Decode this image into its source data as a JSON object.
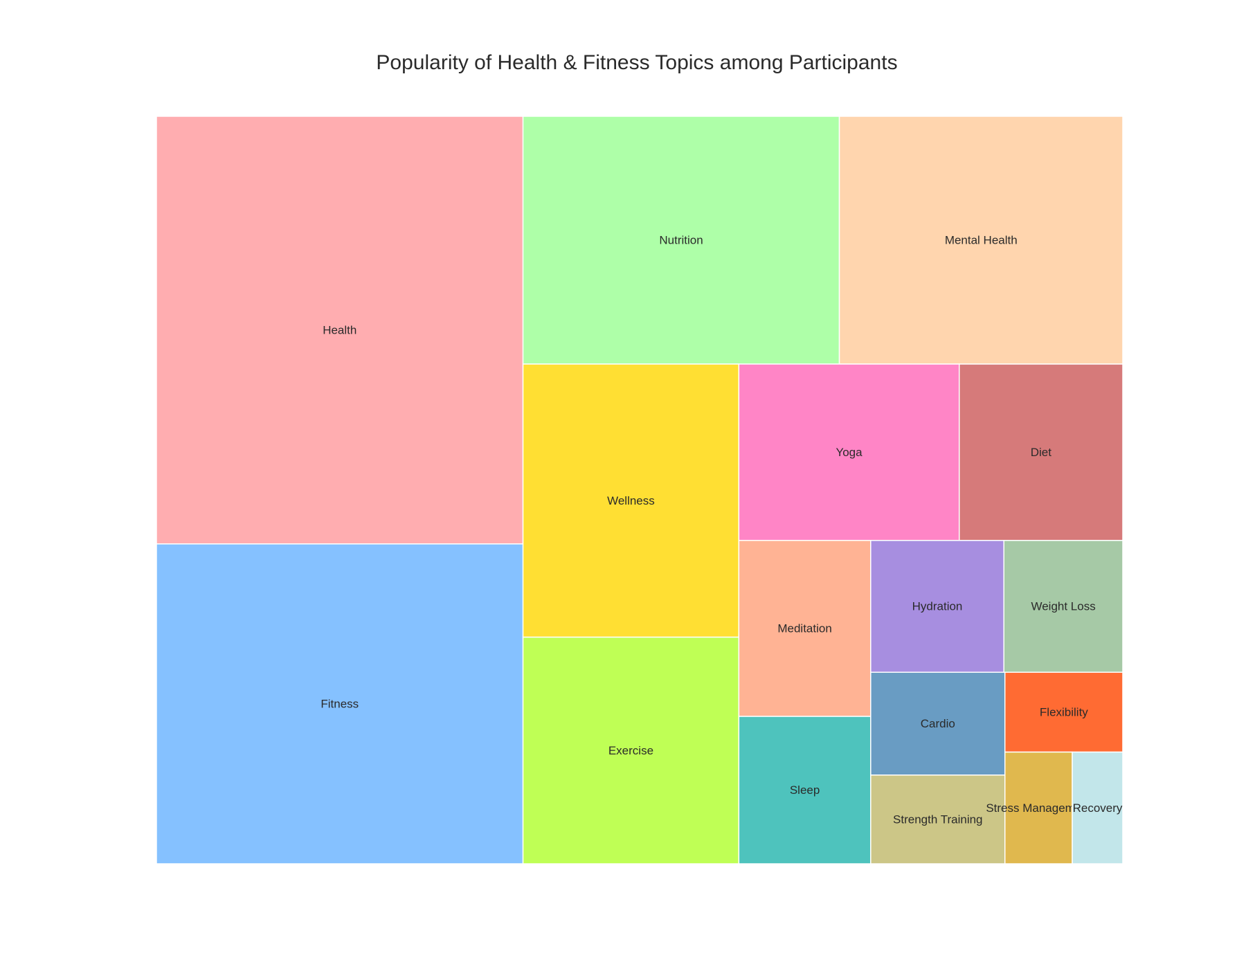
{
  "chart_data": {
    "type": "treemap",
    "title": "Popularity of Health & Fitness Topics among Participants",
    "items": [
      {
        "label": "Health",
        "value": 250,
        "color": "#FFADB0"
      },
      {
        "label": "Fitness",
        "value": 187,
        "color": "#85C1FF"
      },
      {
        "label": "Nutrition",
        "value": 125,
        "color": "#AEFFA8"
      },
      {
        "label": "Mental Health",
        "value": 112,
        "color": "#FFD5AE"
      },
      {
        "label": "Wellness",
        "value": 94,
        "color": "#FFDF33"
      },
      {
        "label": "Exercise",
        "value": 78,
        "color": "#BFFF55"
      },
      {
        "label": "Yoga",
        "value": 62,
        "color": "#FF85C6"
      },
      {
        "label": "Diet",
        "value": 46,
        "color": "#D67A7A"
      },
      {
        "label": "Meditation",
        "value": 37,
        "color": "#FFB394"
      },
      {
        "label": "Sleep",
        "value": 31,
        "color": "#4EC3BD"
      },
      {
        "label": "Hydration",
        "value": 28,
        "color": "#A78EE0"
      },
      {
        "label": "Weight Loss",
        "value": 25,
        "color": "#A6C9A6"
      },
      {
        "label": "Cardio",
        "value": 22,
        "color": "#699CC3"
      },
      {
        "label": "Strength Training",
        "value": 19,
        "color": "#CCC687"
      },
      {
        "label": "Flexibility",
        "value": 15,
        "color": "#FF6B33"
      },
      {
        "label": "Stress Management",
        "value": 12,
        "color": "#E0B84E"
      },
      {
        "label": "Recovery",
        "value": 9,
        "color": "#C2E6EA"
      }
    ]
  }
}
